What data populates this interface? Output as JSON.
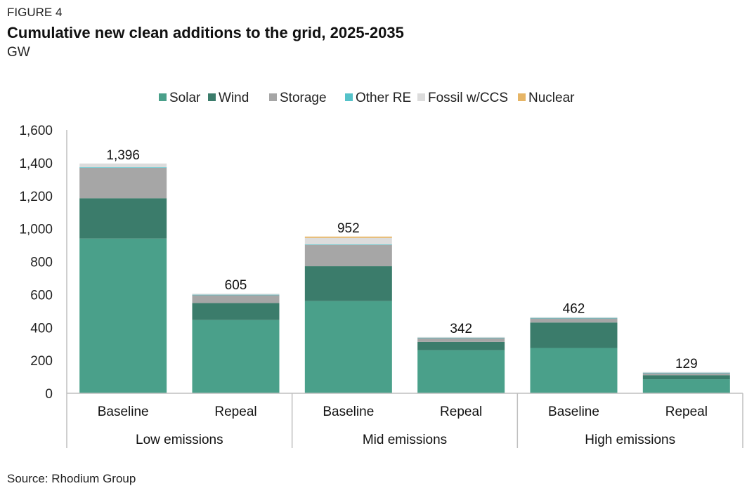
{
  "figure_label": "FIGURE 4",
  "title": "Cumulative new clean additions to the grid, 2025-2035",
  "unit": "GW",
  "source": "Source: Rhodium Group",
  "chart_data": {
    "type": "bar",
    "stacked": true,
    "title": "Cumulative new clean additions to the grid, 2025-2035",
    "ylabel": "GW",
    "ylim": [
      0,
      1600
    ],
    "yticks": [
      0,
      200,
      400,
      600,
      800,
      1000,
      1200,
      1400,
      1600
    ],
    "ytick_labels": [
      "0",
      "200",
      "400",
      "600",
      "800",
      "1,000",
      "1,200",
      "1,400",
      "1,600"
    ],
    "grid": false,
    "legend_position": "top",
    "categories": [
      "Baseline",
      "Repeal",
      "Baseline",
      "Repeal",
      "Baseline",
      "Repeal"
    ],
    "groups": [
      {
        "label": "Low emissions",
        "span": [
          0,
          1
        ]
      },
      {
        "label": "Mid emissions",
        "span": [
          2,
          3
        ]
      },
      {
        "label": "High emissions",
        "span": [
          4,
          5
        ]
      }
    ],
    "series": [
      {
        "name": "Solar",
        "color": "#4aa08a",
        "values": [
          940,
          445,
          560,
          262,
          275,
          85
        ]
      },
      {
        "name": "Wind",
        "color": "#3b7c6b",
        "values": [
          245,
          103,
          212,
          50,
          155,
          25
        ]
      },
      {
        "name": "Storage",
        "color": "#a6a6a6",
        "values": [
          186,
          50,
          130,
          25,
          27,
          14
        ]
      },
      {
        "name": "Other RE",
        "color": "#55c2c9",
        "values": [
          2,
          1,
          2,
          1,
          1,
          1
        ]
      },
      {
        "name": "Fossil w/CCS",
        "color": "#dcdcdc",
        "values": [
          23,
          6,
          40,
          4,
          4,
          4
        ]
      },
      {
        "name": "Nuclear",
        "color": "#e6b566",
        "values": [
          0,
          0,
          8,
          0,
          0,
          0
        ]
      }
    ],
    "totals": [
      1396,
      605,
      952,
      342,
      462,
      129
    ],
    "total_labels": [
      "1,396",
      "605",
      "952",
      "342",
      "462",
      "129"
    ]
  }
}
